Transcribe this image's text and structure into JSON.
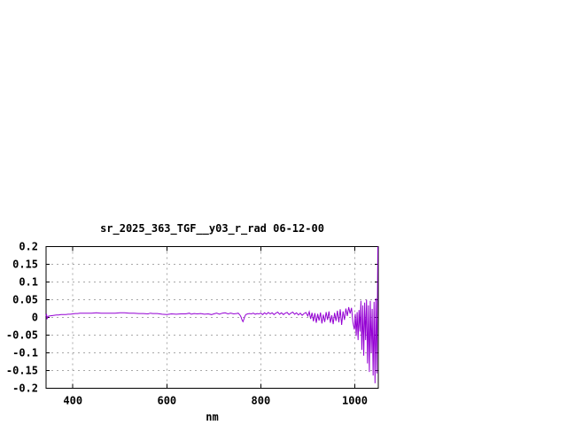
{
  "window": {
    "background": "#ffffff"
  },
  "chart_data": {
    "type": "line",
    "title": "sr_2025_363_TGF__y03_r_rad 06-12-00",
    "xlabel": "nm",
    "ylabel": "",
    "xlim": [
      343,
      1050
    ],
    "ylim": [
      -0.2,
      0.2
    ],
    "grid": true,
    "legend_position": "none",
    "line_color": "#9400d3",
    "grid_color": "#a8a8a8",
    "border_color": "#000000",
    "text_color": "#000000",
    "x_ticks": [
      {
        "value": 400,
        "label": "400"
      },
      {
        "value": 600,
        "label": "600"
      },
      {
        "value": 800,
        "label": "800"
      },
      {
        "value": 1000,
        "label": "1000"
      }
    ],
    "y_ticks": [
      {
        "value": 0.2,
        "label": "0.2"
      },
      {
        "value": 0.15,
        "label": "0.15"
      },
      {
        "value": 0.1,
        "label": "0.1"
      },
      {
        "value": 0.05,
        "label": "0.05"
      },
      {
        "value": 0,
        "label": "0"
      },
      {
        "value": -0.05,
        "label": "-0.05"
      },
      {
        "value": -0.1,
        "label": "-0.1"
      },
      {
        "value": -0.15,
        "label": "-0.15"
      },
      {
        "value": -0.2,
        "label": "-0.2"
      }
    ],
    "series": [
      {
        "name": "sr_2025_363_TGF__y03_r_rad",
        "points": [
          [
            343,
            0.004
          ],
          [
            344,
            0.01
          ],
          [
            345,
            -0.005
          ],
          [
            347,
            0.003
          ],
          [
            350,
            0.004
          ],
          [
            355,
            0.005
          ],
          [
            360,
            0.006
          ],
          [
            365,
            0.007
          ],
          [
            370,
            0.007
          ],
          [
            375,
            0.008
          ],
          [
            380,
            0.008
          ],
          [
            385,
            0.008
          ],
          [
            390,
            0.009
          ],
          [
            395,
            0.009
          ],
          [
            400,
            0.01
          ],
          [
            405,
            0.011
          ],
          [
            410,
            0.011
          ],
          [
            415,
            0.012
          ],
          [
            420,
            0.012
          ],
          [
            430,
            0.012
          ],
          [
            440,
            0.012
          ],
          [
            450,
            0.013
          ],
          [
            460,
            0.012
          ],
          [
            470,
            0.012
          ],
          [
            480,
            0.012
          ],
          [
            490,
            0.012
          ],
          [
            500,
            0.013
          ],
          [
            510,
            0.013
          ],
          [
            520,
            0.012
          ],
          [
            530,
            0.012
          ],
          [
            540,
            0.011
          ],
          [
            550,
            0.011
          ],
          [
            560,
            0.01
          ],
          [
            565,
            0.012
          ],
          [
            570,
            0.011
          ],
          [
            580,
            0.011
          ],
          [
            590,
            0.009
          ],
          [
            600,
            0.008
          ],
          [
            605,
            0.009
          ],
          [
            610,
            0.01
          ],
          [
            620,
            0.009
          ],
          [
            630,
            0.01
          ],
          [
            640,
            0.01
          ],
          [
            648,
            0.012
          ],
          [
            652,
            0.009
          ],
          [
            658,
            0.011
          ],
          [
            665,
            0.01
          ],
          [
            672,
            0.011
          ],
          [
            680,
            0.009
          ],
          [
            688,
            0.01
          ],
          [
            695,
            0.008
          ],
          [
            700,
            0.01
          ],
          [
            706,
            0.012
          ],
          [
            712,
            0.009
          ],
          [
            718,
            0.012
          ],
          [
            724,
            0.013
          ],
          [
            730,
            0.01
          ],
          [
            736,
            0.012
          ],
          [
            742,
            0.01
          ],
          [
            748,
            0.011
          ],
          [
            752,
            0.012
          ],
          [
            756,
            0.006
          ],
          [
            758,
            0.001
          ],
          [
            760,
            -0.007
          ],
          [
            762,
            -0.012
          ],
          [
            764,
            -0.005
          ],
          [
            766,
            0.003
          ],
          [
            768,
            0.008
          ],
          [
            772,
            0.01
          ],
          [
            776,
            0.011
          ],
          [
            780,
            0.01
          ],
          [
            784,
            0.012
          ],
          [
            788,
            0.009
          ],
          [
            792,
            0.011
          ],
          [
            796,
            0.01
          ],
          [
            800,
            0.012
          ],
          [
            804,
            0.008
          ],
          [
            808,
            0.013
          ],
          [
            812,
            0.009
          ],
          [
            816,
            0.014
          ],
          [
            820,
            0.01
          ],
          [
            824,
            0.013
          ],
          [
            828,
            0.008
          ],
          [
            832,
            0.012
          ],
          [
            836,
            0.015
          ],
          [
            840,
            0.009
          ],
          [
            844,
            0.013
          ],
          [
            848,
            0.008
          ],
          [
            852,
            0.012
          ],
          [
            856,
            0.014
          ],
          [
            860,
            0.008
          ],
          [
            864,
            0.012
          ],
          [
            868,
            0.015
          ],
          [
            872,
            0.009
          ],
          [
            876,
            0.013
          ],
          [
            880,
            0.007
          ],
          [
            884,
            0.012
          ],
          [
            888,
            0.006
          ],
          [
            892,
            0.011
          ],
          [
            896,
            0.014
          ],
          [
            900,
            0.004
          ],
          [
            903,
            0.016
          ],
          [
            906,
            -0.004
          ],
          [
            909,
            0.013
          ],
          [
            912,
            -0.011
          ],
          [
            915,
            0.012
          ],
          [
            918,
            -0.015
          ],
          [
            921,
            0.01
          ],
          [
            924,
            -0.009
          ],
          [
            927,
            0.014
          ],
          [
            930,
            -0.017
          ],
          [
            933,
            0.008
          ],
          [
            936,
            -0.013
          ],
          [
            939,
            0.015
          ],
          [
            942,
            -0.007
          ],
          [
            945,
            0.017
          ],
          [
            948,
            -0.015
          ],
          [
            951,
            0.006
          ],
          [
            954,
            -0.019
          ],
          [
            957,
            0.013
          ],
          [
            960,
            -0.01
          ],
          [
            963,
            0.019
          ],
          [
            966,
            -0.014
          ],
          [
            969,
            0.023
          ],
          [
            972,
            -0.021
          ],
          [
            975,
            0.017
          ],
          [
            978,
            -0.007
          ],
          [
            981,
            0.025
          ],
          [
            984,
            0.004
          ],
          [
            987,
            0.029
          ],
          [
            990,
            0.011
          ],
          [
            993,
            0.027
          ],
          [
            996,
            -0.014
          ],
          [
            999,
            -0.034
          ],
          [
            1001,
            0.01
          ],
          [
            1003,
            -0.052
          ],
          [
            1005,
            0.015
          ],
          [
            1007,
            -0.064
          ],
          [
            1009,
            0.021
          ],
          [
            1011,
            -0.04
          ],
          [
            1013,
            0.047
          ],
          [
            1015,
            -0.092
          ],
          [
            1017,
            0.034
          ],
          [
            1019,
            -0.108
          ],
          [
            1021,
            0.042
          ],
          [
            1023,
            -0.064
          ],
          [
            1025,
            0.05
          ],
          [
            1027,
            -0.13
          ],
          [
            1029,
            0.034
          ],
          [
            1031,
            -0.154
          ],
          [
            1033,
            0.047
          ],
          [
            1035,
            -0.1
          ],
          [
            1037,
            0.024
          ],
          [
            1039,
            -0.164
          ],
          [
            1041,
            0.044
          ],
          [
            1043,
            -0.186
          ],
          [
            1045,
            0.054
          ],
          [
            1047,
            -0.158
          ],
          [
            1049,
            0.2
          ]
        ]
      }
    ]
  }
}
